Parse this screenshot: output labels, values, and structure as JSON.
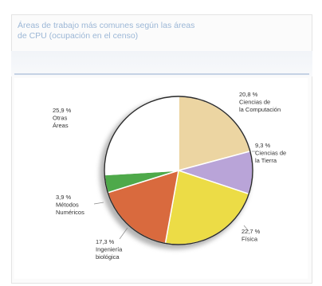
{
  "title_line1": "Áreas de trabajo más comunes según las áreas",
  "title_line2": "de CPU (ocupación en el censo)",
  "chart_data": {
    "type": "pie",
    "title": "Áreas de trabajo más comunes según las áreas de CPU (ocupación en el censo)",
    "slices": [
      {
        "label": "Ciencias de la Computación",
        "value": 20.8,
        "display": "20,8 %",
        "color": "#ecd5a2"
      },
      {
        "label": "Ciencias de la Tierra",
        "value": 9.3,
        "display": "9,3 %",
        "color": "#b9a4d8"
      },
      {
        "label": "Física",
        "value": 22.7,
        "display": "22,7 %",
        "color": "#ecdc46"
      },
      {
        "label": "Ingeniería biológica",
        "value": 17.3,
        "display": "17,3 %",
        "color": "#d96a3e"
      },
      {
        "label": "Métodos Numéricos",
        "value": 3.9,
        "display": "3,9 %",
        "color": "#4ea94a"
      },
      {
        "label": "Otras Áreas",
        "value": 25.9,
        "display": "25,9 %",
        "color": "#ffffff"
      }
    ]
  }
}
